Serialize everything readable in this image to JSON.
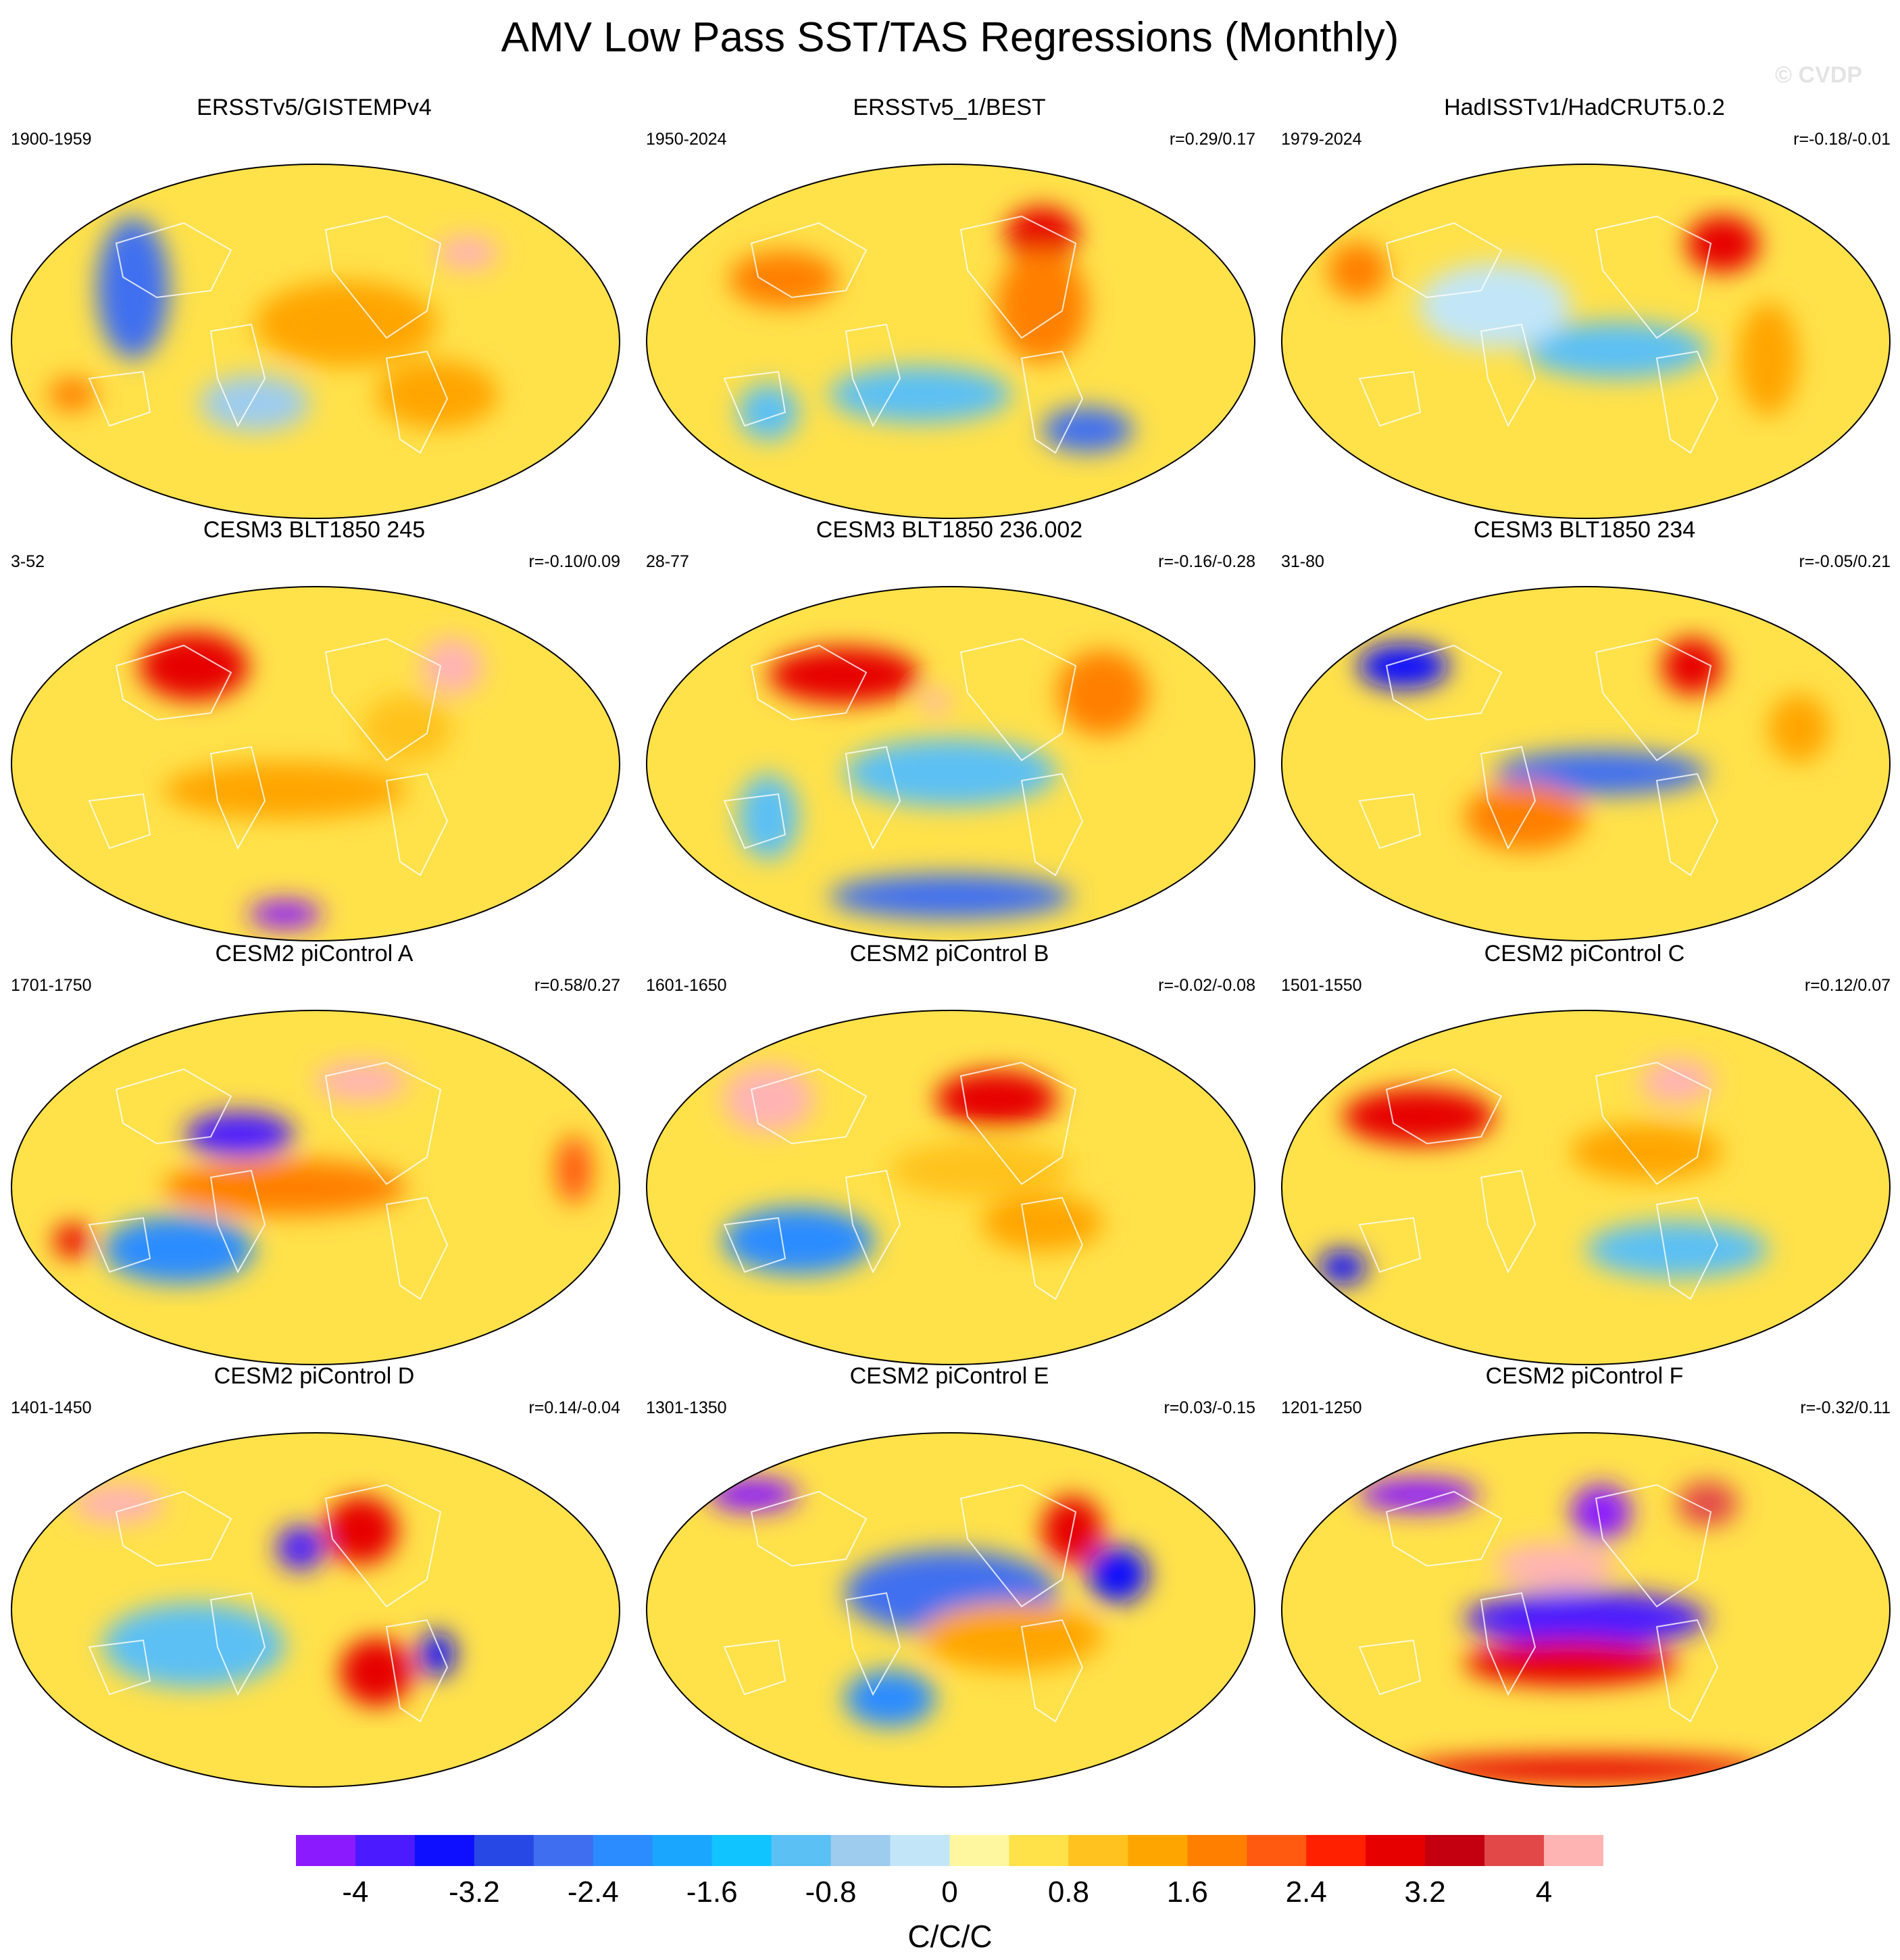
{
  "figure": {
    "title": "AMV Low Pass SST/TAS Regressions (Monthly)",
    "watermark": "© CVDP"
  },
  "panels": [
    {
      "title": "ERSSTv5/GISTEMPv4",
      "years": "1900-1959",
      "corr": "",
      "pattern": "obs1"
    },
    {
      "title": "ERSSTv5_1/BEST",
      "years": "1950-2024",
      "corr": "r=0.29/0.17",
      "pattern": "obs2"
    },
    {
      "title": "HadISSTv1/HadCRUT5.0.2",
      "years": "1979-2024",
      "corr": "r=-0.18/-0.01",
      "pattern": "obs3"
    },
    {
      "title": "CESM3 BLT1850 245",
      "years": "3-52",
      "corr": "r=-0.10/0.09",
      "pattern": "m1"
    },
    {
      "title": "CESM3 BLT1850 236.002",
      "years": "28-77",
      "corr": "r=-0.16/-0.28",
      "pattern": "m2"
    },
    {
      "title": "CESM3 BLT1850 234",
      "years": "31-80",
      "corr": "r=-0.05/0.21",
      "pattern": "m3"
    },
    {
      "title": "CESM2 piControl A",
      "years": "1701-1750",
      "corr": "r=0.58/0.27",
      "pattern": "m4"
    },
    {
      "title": "CESM2 piControl B",
      "years": "1601-1650",
      "corr": "r=-0.02/-0.08",
      "pattern": "m5"
    },
    {
      "title": "CESM2 piControl C",
      "years": "1501-1550",
      "corr": "r=0.12/0.07",
      "pattern": "m6"
    },
    {
      "title": "CESM2 piControl D",
      "years": "1401-1450",
      "corr": "r=0.14/-0.04",
      "pattern": "m7"
    },
    {
      "title": "CESM2 piControl E",
      "years": "1301-1350",
      "corr": "r=0.03/-0.15",
      "pattern": "m8"
    },
    {
      "title": "CESM2 piControl F",
      "years": "1201-1250",
      "corr": "r=-0.32/0.11",
      "pattern": "m9"
    }
  ],
  "colorbar": {
    "units": "C/C/C",
    "levels": [
      -4.4,
      -4,
      -3.6,
      -3.2,
      -2.8,
      -2.4,
      -2,
      -1.6,
      -1.2,
      -0.8,
      -0.4,
      0,
      0.4,
      0.8,
      1.2,
      1.6,
      2,
      2.4,
      2.8,
      3.2,
      3.6,
      4,
      4.4
    ],
    "labels": [
      "-4",
      "-3.2",
      "-2.4",
      "-1.6",
      "-0.8",
      "0",
      "0.8",
      "1.6",
      "2.4",
      "3.2",
      "4"
    ],
    "colors": [
      "#8c1aff",
      "#4c1aff",
      "#0f0fff",
      "#2848e6",
      "#3f6ff0",
      "#2b8cff",
      "#1aa6ff",
      "#10c4ff",
      "#5bc0f4",
      "#9dccee",
      "#c2e6f8",
      "#fff7a0",
      "#ffe14a",
      "#ffc21f",
      "#ffa500",
      "#ff8000",
      "#ff5a10",
      "#ff2000",
      "#e60000",
      "#c40010",
      "#e24848",
      "#ffb4b4"
    ]
  }
}
